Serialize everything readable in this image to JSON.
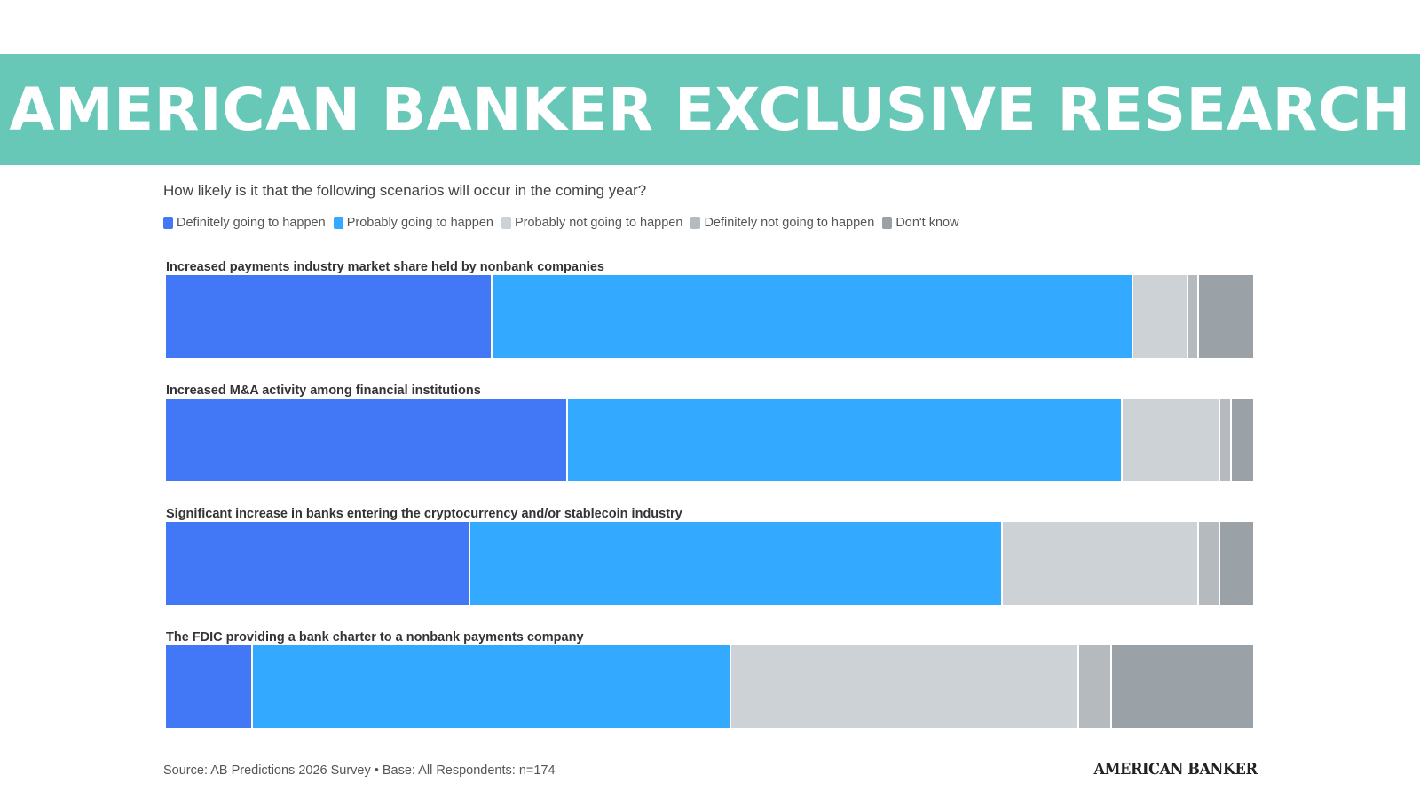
{
  "banner": {
    "title": "AMERICAN BANKER EXCLUSIVE RESEARCH"
  },
  "footer": {
    "source": "Source: AB Predictions 2026 Survey • Base: All Respondents: n=174",
    "logo": "AMERICAN BANKER"
  },
  "chart_data": {
    "type": "bar",
    "orientation": "horizontal",
    "stacked": true,
    "normalized": true,
    "title": "How likely is it that the following scenarios will occur in the coming year?",
    "legend_position": "top-left",
    "grid": false,
    "categories": [
      "Increased payments industry market share held by nonbank companies",
      "Increased M&A activity among financial institutions",
      "Significant increase in banks entering the cryptocurrency and/or stablecoin industry",
      "The FDIC providing a bank charter to a nonbank payments company"
    ],
    "series": [
      {
        "name": "Definitely going to happen",
        "color": "#4278f5",
        "values": [
          30,
          37,
          28,
          8
        ]
      },
      {
        "name": "Probably going to happen",
        "color": "#33aaff",
        "values": [
          59,
          51,
          49,
          44
        ]
      },
      {
        "name": "Probably not going to happen",
        "color": "#cdd2d6",
        "values": [
          5,
          9,
          18,
          32
        ]
      },
      {
        "name": "Definitely not going to happen",
        "color": "#b5babe",
        "values": [
          1,
          1,
          2,
          3
        ]
      },
      {
        "name": "Don't know",
        "color": "#9aa1a7",
        "values": [
          5,
          2,
          3,
          13
        ]
      }
    ]
  }
}
